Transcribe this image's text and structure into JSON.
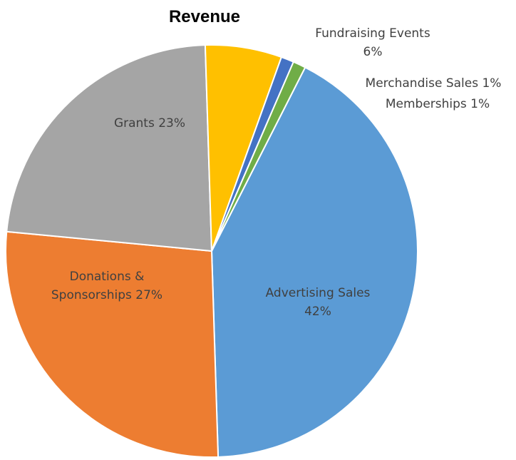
{
  "chart_data": {
    "type": "pie",
    "title": "Revenue",
    "slices": [
      {
        "label": "Advertising Sales",
        "value": 42,
        "display": [
          "Advertising Sales",
          "42%"
        ],
        "color": "#5B9BD5"
      },
      {
        "label": "Donations & Sponsorships",
        "value": 27,
        "display": [
          "Donations &",
          "Sponsorships 27%"
        ],
        "color": "#ED7D31"
      },
      {
        "label": "Grants",
        "value": 23,
        "display": [
          "Grants 23%"
        ],
        "color": "#A5A5A5"
      },
      {
        "label": "Fundraising Events",
        "value": 6,
        "display": [
          "Fundraising Events",
          "6%"
        ],
        "color": "#FFC000"
      },
      {
        "label": "Merchandise Sales",
        "value": 1,
        "display": [
          "Merchandise Sales 1%"
        ],
        "color": "#4472C4"
      },
      {
        "label": "Memberships",
        "value": 1,
        "display": [
          "Memberships 1%"
        ],
        "color": "#70AD47"
      }
    ]
  }
}
